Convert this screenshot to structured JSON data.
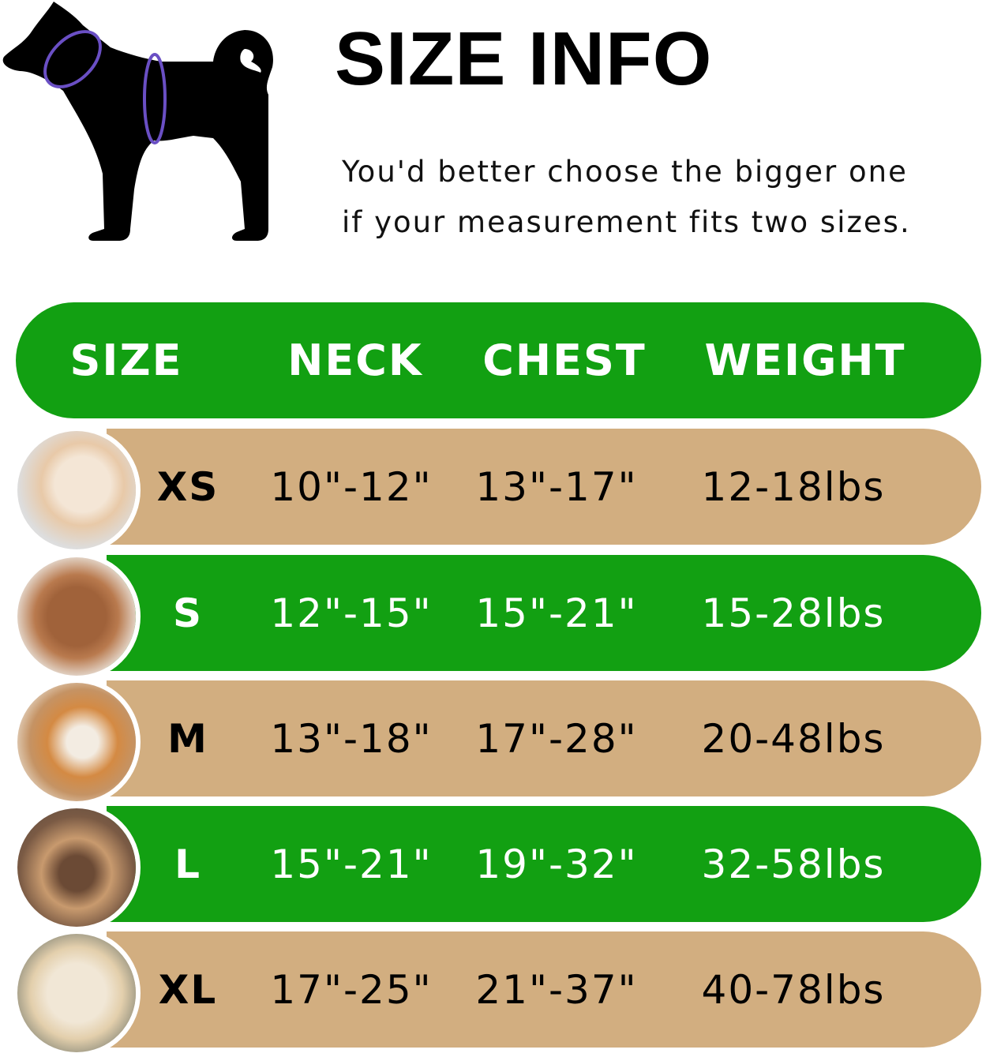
{
  "title": "SIZE INFO",
  "note": [
    "You'd better choose the bigger one",
    "if your measurement fits two sizes."
  ],
  "colors": {
    "green": "#12A012",
    "tan": "#D2AE80",
    "measure_ring": "#6A4FC4"
  },
  "header": {
    "size": "SIZE",
    "neck": "NECK",
    "chest": "CHEST",
    "weight": "WEIGHT"
  },
  "rows": [
    {
      "size": "XS",
      "neck": "10\"-12\"",
      "chest": "13\"-17\"",
      "weight": "12-18lbs",
      "band": "tan",
      "photo": "pomeranian-photo"
    },
    {
      "size": "S",
      "neck": "12\"-15\"",
      "chest": "15\"-21\"",
      "weight": "15-28lbs",
      "band": "green",
      "photo": "poodle-photo"
    },
    {
      "size": "M",
      "neck": "13\"-18\"",
      "chest": "17\"-28\"",
      "weight": "20-48lbs",
      "band": "tan",
      "photo": "shiba-inu-photo"
    },
    {
      "size": "L",
      "neck": "15\"-21\"",
      "chest": "19\"-32\"",
      "weight": "32-58lbs",
      "band": "green",
      "photo": "french-bulldog-photo"
    },
    {
      "size": "XL",
      "neck": "17\"-25\"",
      "chest": "21\"-37\"",
      "weight": "40-78lbs",
      "band": "tan",
      "photo": "labrador-photo"
    }
  ]
}
